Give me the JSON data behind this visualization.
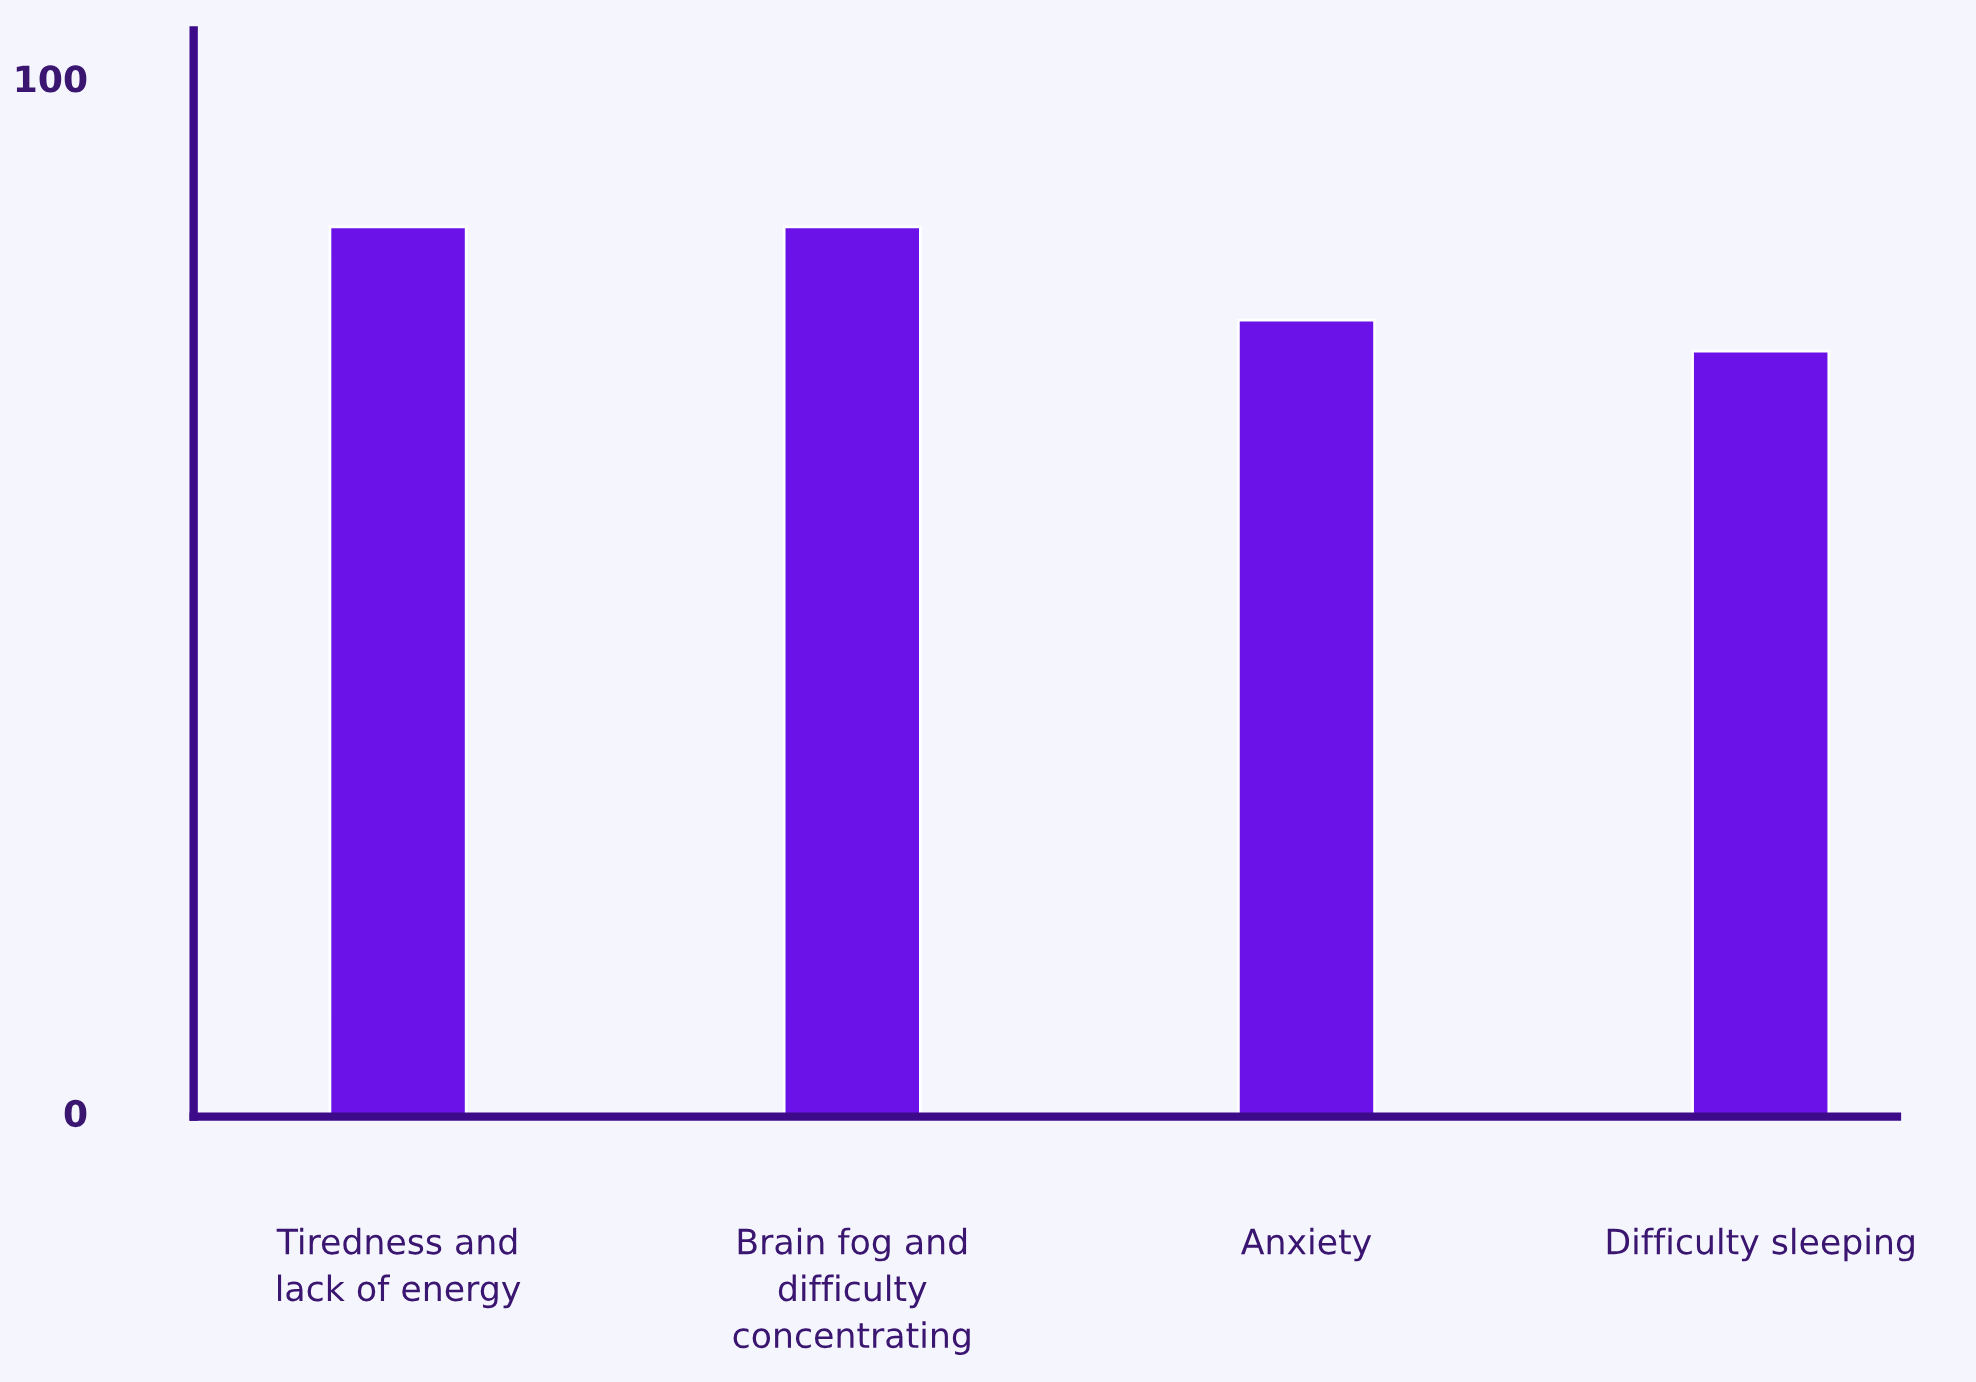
{
  "chart_data": {
    "type": "bar",
    "categories": [
      "Tiredness and\nlack of energy",
      "Brain fog and\ndifficulty\nconcentrating",
      "Anxiety",
      "Difficulty sleeping"
    ],
    "values": [
      86,
      86,
      77,
      74
    ],
    "color": "#6b12e8",
    "ylim": [
      0,
      105
    ],
    "yticks": [
      0,
      100
    ],
    "grid": false,
    "legend": false
  }
}
